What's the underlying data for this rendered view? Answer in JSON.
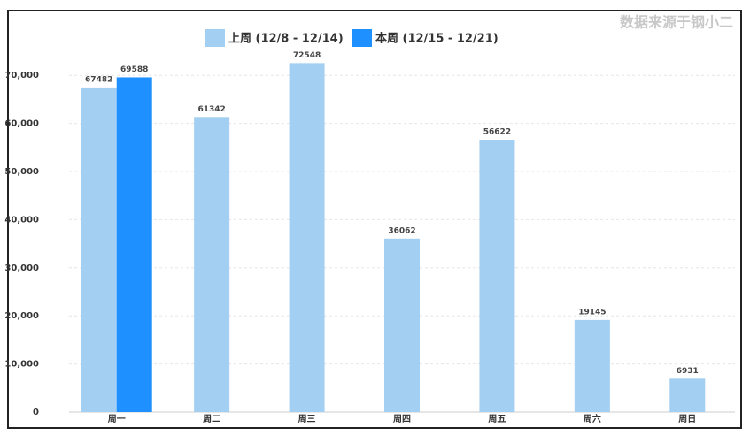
{
  "chart_data": {
    "type": "bar",
    "source": "数据来源于钢小二",
    "categories": [
      "周一",
      "周二",
      "周三",
      "周四",
      "周五",
      "周六",
      "周日"
    ],
    "series": [
      {
        "name": "上周 (12/8 - 12/14)",
        "color": "#a3cff3",
        "values": [
          67482,
          61342,
          72548,
          36062,
          56622,
          19145,
          6931
        ]
      },
      {
        "name": "本周 (12/15 - 12/21)",
        "color": "#1e90ff",
        "values": [
          69588,
          null,
          null,
          null,
          null,
          null,
          null
        ]
      }
    ],
    "ylim": [
      0,
      75000
    ],
    "yticks": [
      0,
      {
        "value": 10000,
        "label": "10,000"
      },
      {
        "value": 20000,
        "label": "20,000"
      },
      {
        "value": 30000,
        "label": "30,000"
      },
      {
        "value": 40000,
        "label": "40,000"
      },
      {
        "value": 50000,
        "label": "50,000"
      },
      {
        "value": 60000,
        "label": "60,000"
      },
      {
        "value": 70000,
        "label": "70,000"
      }
    ],
    "grid": true
  }
}
